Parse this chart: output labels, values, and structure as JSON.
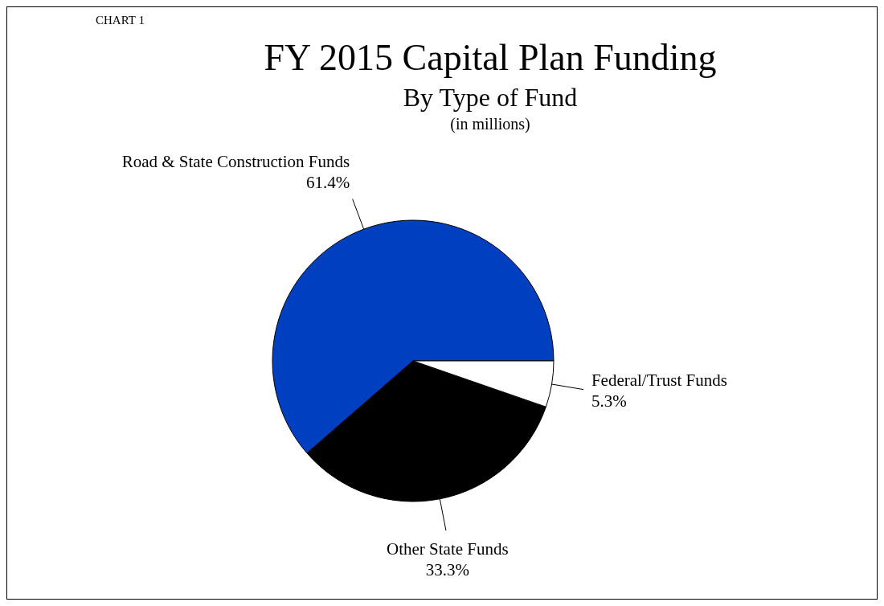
{
  "chart_data": {
    "type": "pie",
    "title": "FY 2015 Capital Plan Funding",
    "subtitle": "By Type of Fund",
    "annotations": [
      "CHART 1",
      "(in millions)"
    ],
    "categories": [
      "Road & State Construction Funds",
      "Other State Funds",
      "Federal/Trust Funds"
    ],
    "values": [
      61.4,
      33.3,
      5.3
    ],
    "colors": [
      "#0040c0",
      "#000000",
      "#ffffff"
    ],
    "value_labels": [
      "61.4%",
      "33.3%",
      "5.3%"
    ]
  }
}
